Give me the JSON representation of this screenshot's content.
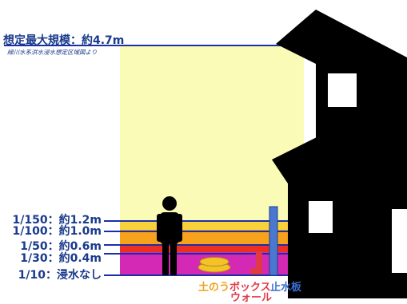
{
  "max_scale": {
    "label": "想定最大規模：約4.7m",
    "source": "緑川水系洪水浸水想定区域図より"
  },
  "levels": [
    {
      "label": "1/150：約1.2m",
      "value_m": 1.2,
      "color": "#f7d23a"
    },
    {
      "label": "1/100：約1.0m",
      "value_m": 1.0,
      "color": "#f6a21c"
    },
    {
      "label": "1/50：約0.6m",
      "value_m": 0.6,
      "color": "#ec2f22"
    },
    {
      "label": "1/30：約0.4m",
      "value_m": 0.4,
      "color": "#d329b5"
    },
    {
      "label": "1/10：浸水なし",
      "value_m": 0.0,
      "color": "#a95cc7"
    }
  ],
  "colors": {
    "max_zone": "#fbfbb8",
    "line": "#1a2fa8",
    "sandbag": "#f4c22b",
    "box_wall": "#e13a47",
    "board": "#4a78d0",
    "house": "#000000"
  },
  "legend": {
    "sandbag": "土のう",
    "box_wall_1": "ボックス",
    "box_wall_2": "ウォール",
    "board": "止水板"
  }
}
